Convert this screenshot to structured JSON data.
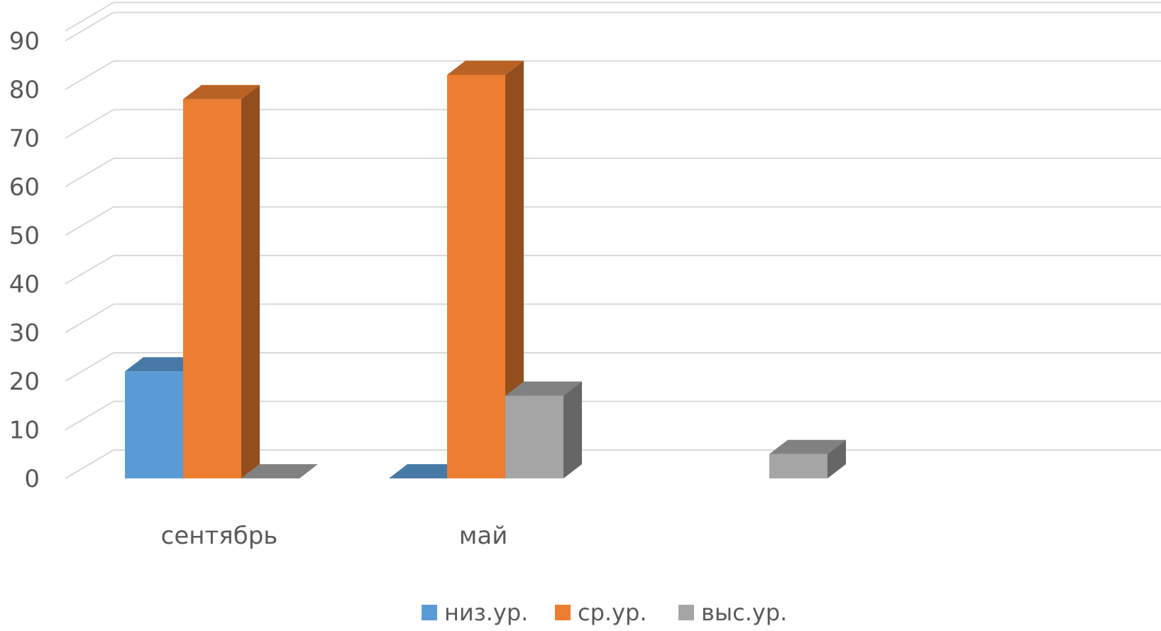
{
  "chart_data": {
    "type": "bar",
    "view": "3d-clustered-column",
    "categories": [
      "сентябрь",
      "май",
      ""
    ],
    "series": [
      {
        "name": "низ.ур.",
        "values": [
          22,
          0,
          null
        ],
        "color": "#5B9BD5"
      },
      {
        "name": "ср.ур.",
        "values": [
          78,
          83,
          null
        ],
        "color": "#ED7D31"
      },
      {
        "name": "выс.ур.",
        "values": [
          0,
          17,
          5
        ],
        "color": "#A5A5A5"
      }
    ],
    "title": "",
    "xlabel": "",
    "ylabel": "",
    "ylim": [
      0,
      90
    ],
    "yticks": [
      0,
      10,
      20,
      30,
      40,
      50,
      60,
      70,
      80,
      90
    ],
    "grid": true,
    "legend": "bottom"
  }
}
